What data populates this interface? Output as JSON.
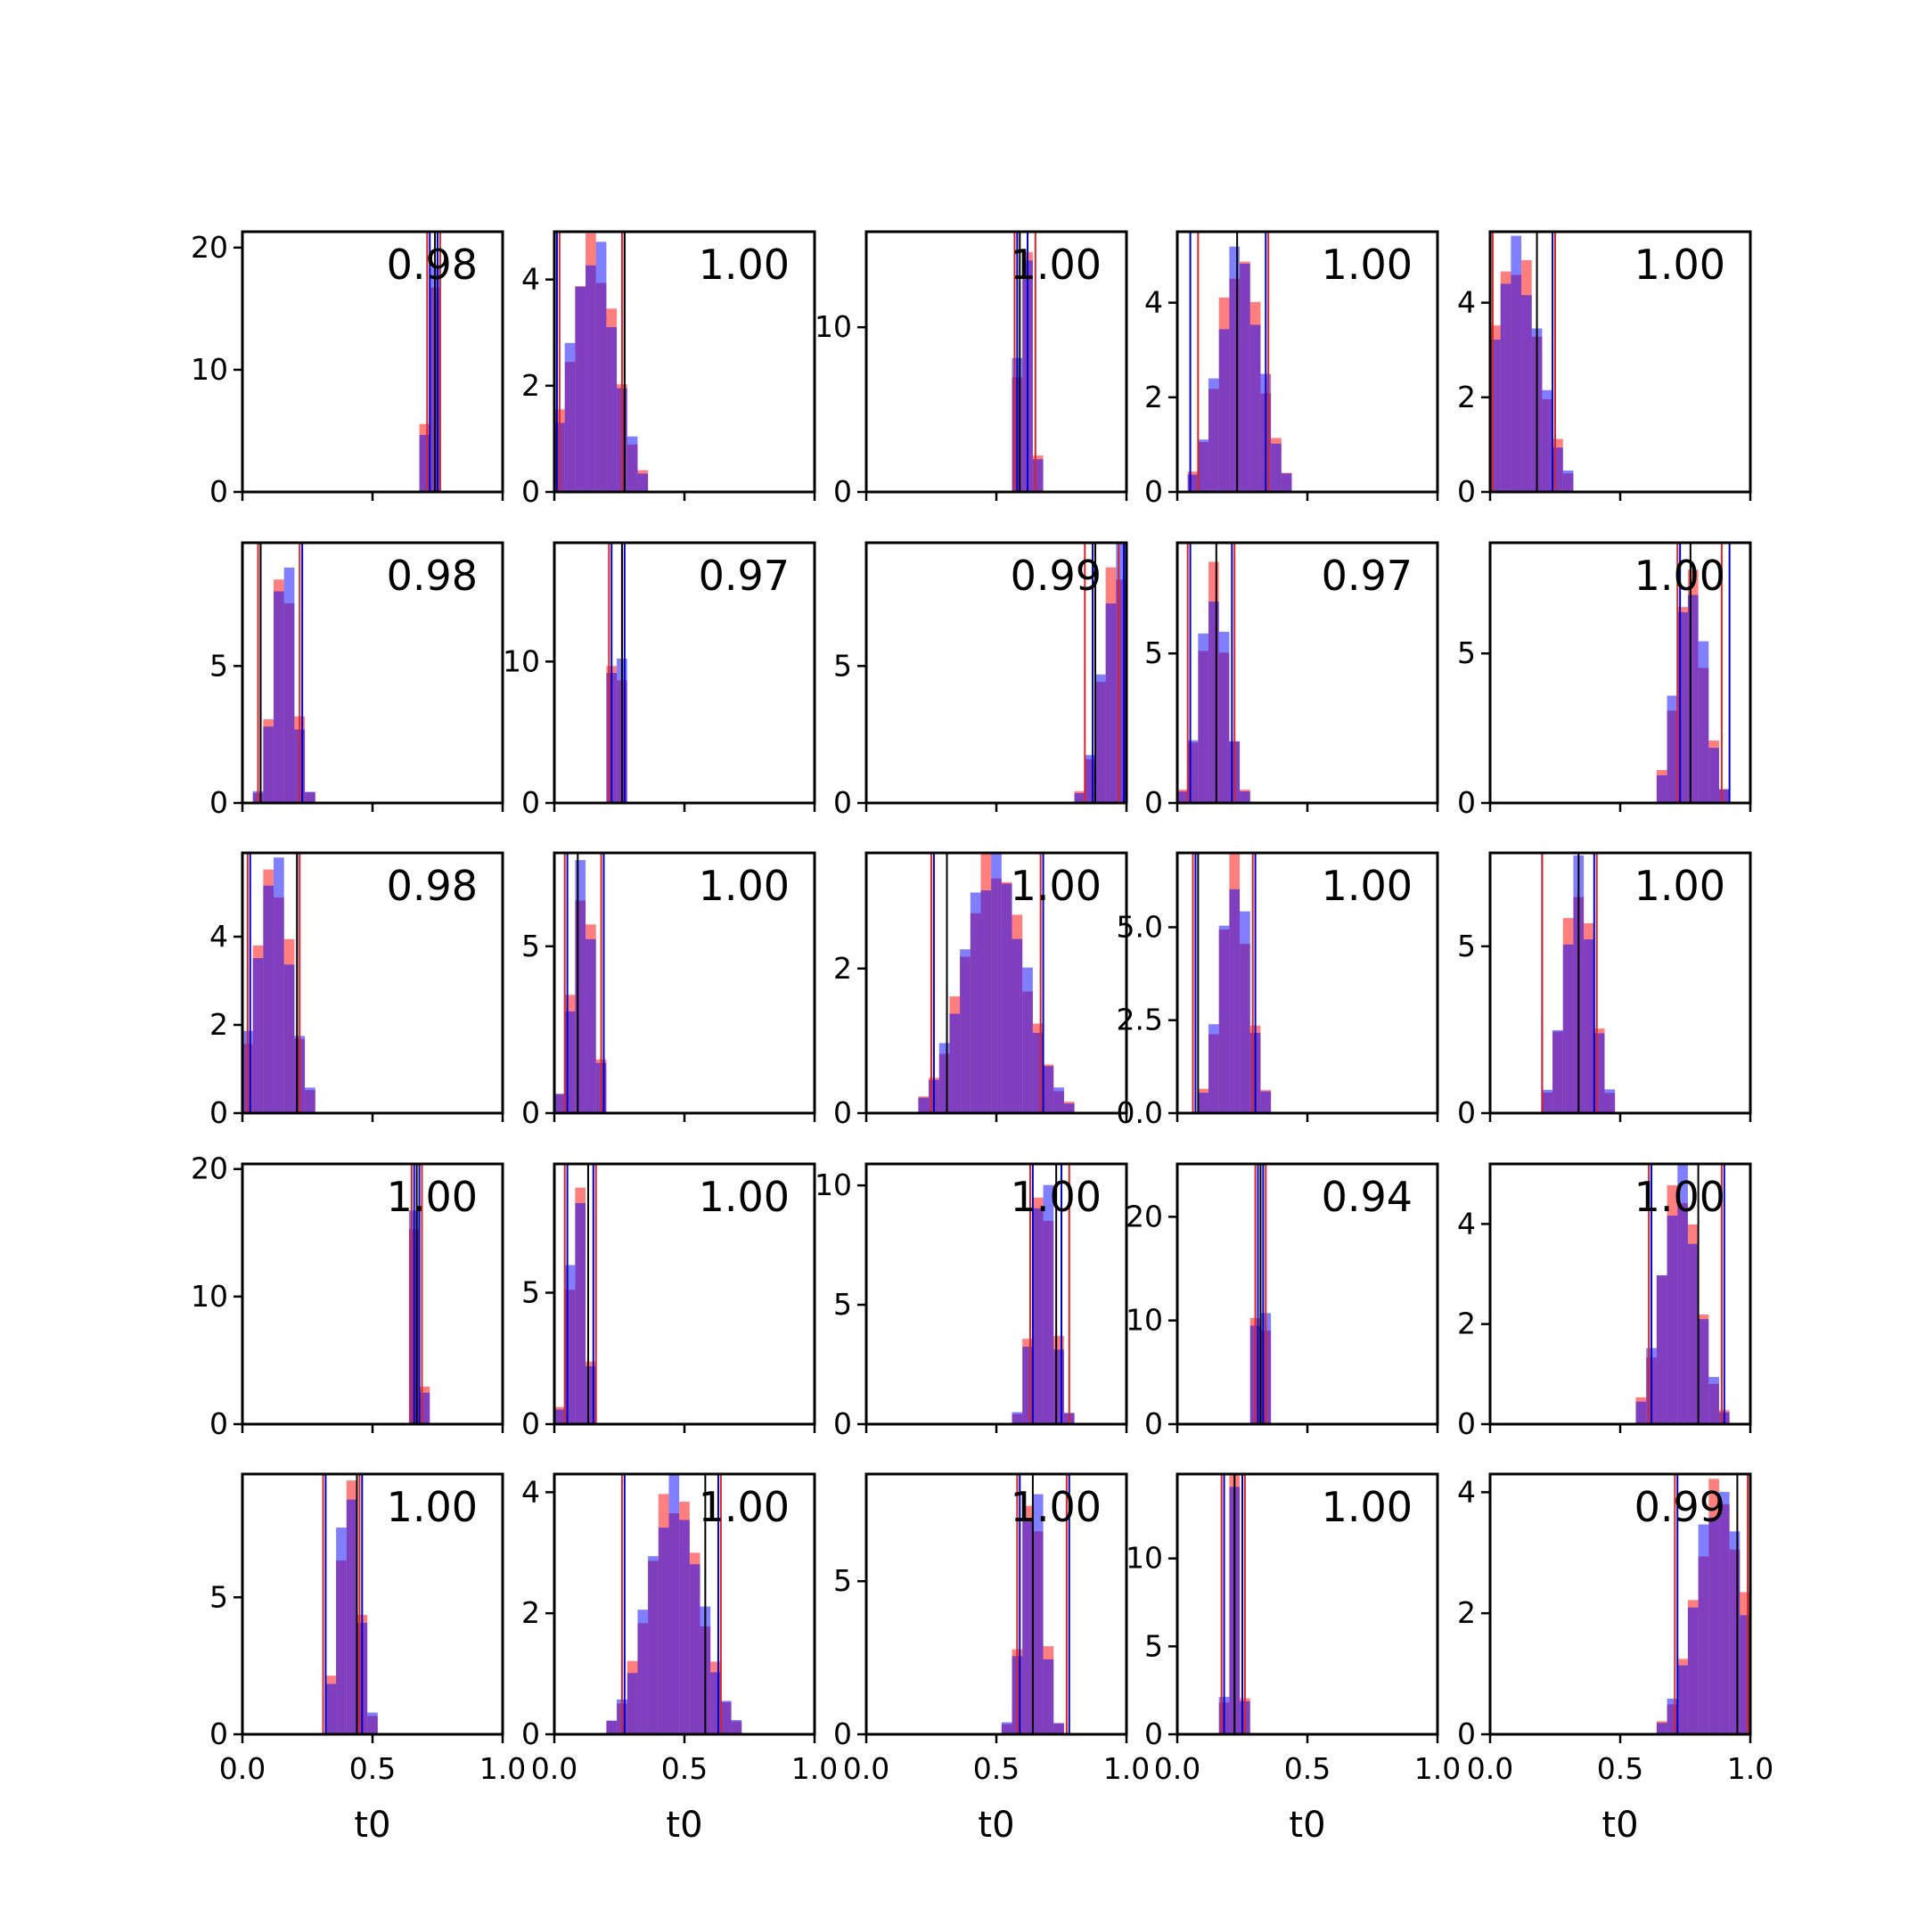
{
  "chart_data": {
    "type": "histogram-grid",
    "rows": 5,
    "cols": 5,
    "xlim": [
      0,
      1
    ],
    "xticks": [
      0.0,
      0.5,
      1.0
    ],
    "xtick_labels": [
      "0.0",
      "0.5",
      "1.0"
    ],
    "xlabel": "t0",
    "colors": {
      "red_hist": "#ff0000",
      "blue_hist": "#0000ff",
      "red_line": "#d62728",
      "blue_line": "#0000cc",
      "black_line": "#000000"
    },
    "panels": [
      {
        "label": "0.98",
        "ylim": [
          0,
          21.3
        ],
        "yticks": [
          0,
          10,
          20
        ],
        "ytick_labels": [
          "0",
          "10",
          "20"
        ],
        "mean": 0.73,
        "sd": 0.018,
        "peak": 20.5,
        "red_lines": [
          0.71,
          0.76
        ],
        "blue_lines": [
          0.72,
          0.75
        ],
        "black_line": 0.74
      },
      {
        "label": "1.00",
        "ylim": [
          0,
          4.9
        ],
        "yticks": [
          0,
          2,
          4
        ],
        "ytick_labels": [
          "0",
          "2",
          "4"
        ],
        "mean": 0.15,
        "sd": 0.085,
        "peak": 4.6,
        "red_lines": [
          0.02,
          0.26
        ],
        "blue_lines": [
          0.01,
          0.27
        ],
        "black_line": 0.27
      },
      {
        "label": "1.00",
        "ylim": [
          0,
          15.8
        ],
        "yticks": [
          0,
          10
        ],
        "ytick_labels": [
          "0",
          "10"
        ],
        "mean": 0.61,
        "sd": 0.025,
        "peak": 15.5,
        "red_lines": [
          0.57,
          0.65
        ],
        "blue_lines": [
          0.58,
          0.62
        ],
        "black_line": 0.59
      },
      {
        "label": "1.00",
        "ylim": [
          0,
          5.5
        ],
        "yticks": [
          0,
          2,
          4
        ],
        "ytick_labels": [
          "0",
          "2",
          "4"
        ],
        "mean": 0.24,
        "sd": 0.08,
        "peak": 5.0,
        "red_lines": [
          0.08,
          0.35
        ],
        "blue_lines": [
          0.05,
          0.34
        ],
        "black_line": 0.23
      },
      {
        "label": "1.00",
        "ylim": [
          0,
          5.5
        ],
        "yticks": [
          0,
          2,
          4
        ],
        "ytick_labels": [
          "0",
          "2",
          "4"
        ],
        "mean": 0.1,
        "sd": 0.09,
        "peak": 5.0,
        "red_lines": [
          0.01,
          0.25
        ],
        "blue_lines": [
          0.0,
          0.24
        ],
        "black_line": 0.18
      },
      {
        "label": "0.98",
        "ylim": [
          0,
          9.5
        ],
        "yticks": [
          0,
          5
        ],
        "ytick_labels": [
          "0",
          "5"
        ],
        "mean": 0.16,
        "sd": 0.04,
        "peak": 9.0,
        "red_lines": [
          0.06,
          0.22
        ],
        "blue_lines": [
          0.07,
          0.23
        ],
        "black_line": 0.07
      },
      {
        "label": "0.97",
        "ylim": [
          0,
          18.4
        ],
        "yticks": [
          0,
          10
        ],
        "ytick_labels": [
          "0",
          "10"
        ],
        "mean": 0.24,
        "sd": 0.018,
        "peak": 17.5,
        "red_lines": [
          0.21,
          0.26
        ],
        "blue_lines": [
          0.22,
          0.27
        ],
        "black_line": 0.26
      },
      {
        "label": "0.99",
        "ylim": [
          0,
          9.5
        ],
        "yticks": [
          0,
          5
        ],
        "ytick_labels": [
          "0",
          "5"
        ],
        "mean": 0.97,
        "sd": 0.06,
        "peak": 9.0,
        "red_lines": [
          0.84,
          0.97
        ],
        "blue_lines": [
          0.87,
          0.99
        ],
        "black_line": 0.88
      },
      {
        "label": "0.97",
        "ylim": [
          0,
          8.7
        ],
        "yticks": [
          0,
          5
        ],
        "ytick_labels": [
          "0",
          "5"
        ],
        "mean": 0.14,
        "sd": 0.05,
        "peak": 7.4,
        "red_lines": [
          0.04,
          0.22
        ],
        "blue_lines": [
          0.05,
          0.21
        ],
        "black_line": 0.15
      },
      {
        "label": "1.00",
        "ylim": [
          0,
          8.7
        ],
        "yticks": [
          0,
          5
        ],
        "ytick_labels": [
          "0",
          "5"
        ],
        "mean": 0.77,
        "sd": 0.055,
        "peak": 7.5,
        "red_lines": [
          0.72,
          0.89
        ],
        "blue_lines": [
          0.73,
          0.92
        ],
        "black_line": 0.77
      },
      {
        "label": "0.98",
        "ylim": [
          0,
          5.9
        ],
        "yticks": [
          0,
          2,
          4
        ],
        "ytick_labels": [
          "0",
          "2",
          "4"
        ],
        "mean": 0.12,
        "sd": 0.065,
        "peak": 5.6,
        "red_lines": [
          0.02,
          0.22
        ],
        "blue_lines": [
          0.03,
          0.21
        ],
        "black_line": 0.21
      },
      {
        "label": "1.00",
        "ylim": [
          0,
          7.8
        ],
        "yticks": [
          0,
          5
        ],
        "ytick_labels": [
          "0",
          "5"
        ],
        "mean": 0.11,
        "sd": 0.04,
        "peak": 7.2,
        "red_lines": [
          0.04,
          0.18
        ],
        "blue_lines": [
          0.05,
          0.19
        ],
        "black_line": 0.09
      },
      {
        "label": "1.00",
        "ylim": [
          0,
          3.6
        ],
        "yticks": [
          0,
          2
        ],
        "ytick_labels": [
          "0",
          "2"
        ],
        "mean": 0.49,
        "sd": 0.115,
        "peak": 3.5,
        "red_lines": [
          0.25,
          0.67
        ],
        "blue_lines": [
          0.26,
          0.68
        ],
        "black_line": 0.31
      },
      {
        "label": "1.00",
        "ylim": [
          0,
          7.0
        ],
        "yticks": [
          0,
          2.5,
          5
        ],
        "ytick_labels": [
          "0.0",
          "2.5",
          "5.0"
        ],
        "mean": 0.22,
        "sd": 0.055,
        "peak": 6.5,
        "red_lines": [
          0.06,
          0.29
        ],
        "blue_lines": [
          0.07,
          0.3
        ],
        "black_line": 0.08
      },
      {
        "label": "1.00",
        "ylim": [
          0,
          7.8
        ],
        "yticks": [
          0,
          5
        ],
        "ytick_labels": [
          "0",
          "5"
        ],
        "mean": 0.34,
        "sd": 0.055,
        "peak": 7.1,
        "red_lines": [
          0.2,
          0.41
        ],
        "blue_lines": [
          0.2,
          0.4
        ],
        "black_line": 0.34
      },
      {
        "label": "1.00",
        "ylim": [
          0,
          20.4
        ],
        "yticks": [
          0,
          10,
          20
        ],
        "ytick_labels": [
          "0",
          "10",
          "20"
        ],
        "mean": 0.67,
        "sd": 0.015,
        "peak": 20.0,
        "red_lines": [
          0.65,
          0.69
        ],
        "blue_lines": [
          0.66,
          0.68
        ],
        "black_line": 0.67
      },
      {
        "label": "1.00",
        "ylim": [
          0,
          9.9
        ],
        "yticks": [
          0,
          5
        ],
        "ytick_labels": [
          "0",
          "5"
        ],
        "mean": 0.09,
        "sd": 0.03,
        "peak": 9.2,
        "red_lines": [
          0.04,
          0.16
        ],
        "blue_lines": [
          0.05,
          0.15
        ],
        "black_line": 0.13
      },
      {
        "label": "1.00",
        "ylim": [
          0,
          10.9
        ],
        "yticks": [
          0,
          5,
          10
        ],
        "ytick_labels": [
          "0",
          "5",
          "10"
        ],
        "mean": 0.68,
        "sd": 0.04,
        "peak": 10.5,
        "red_lines": [
          0.63,
          0.78
        ],
        "blue_lines": [
          0.64,
          0.75
        ],
        "black_line": 0.73
      },
      {
        "label": "0.94",
        "ylim": [
          0,
          25.1
        ],
        "yticks": [
          0,
          10,
          20
        ],
        "ytick_labels": [
          "0",
          "10",
          "20"
        ],
        "mean": 0.32,
        "sd": 0.015,
        "peak": 24.0,
        "red_lines": [
          0.3,
          0.34
        ],
        "blue_lines": [
          0.31,
          0.33
        ],
        "black_line": 0.32
      },
      {
        "label": "1.00",
        "ylim": [
          0,
          5.2
        ],
        "yticks": [
          0,
          2,
          4
        ],
        "ytick_labels": [
          "0",
          "2",
          "4"
        ],
        "mean": 0.73,
        "sd": 0.07,
        "peak": 4.9,
        "red_lines": [
          0.61,
          0.89
        ],
        "blue_lines": [
          0.62,
          0.9
        ],
        "black_line": 0.8
      },
      {
        "label": "1.00",
        "ylim": [
          0,
          9.5
        ],
        "yticks": [
          0,
          5
        ],
        "ytick_labels": [
          "0",
          "5"
        ],
        "mean": 0.41,
        "sd": 0.04,
        "peak": 9.2,
        "red_lines": [
          0.31,
          0.45
        ],
        "blue_lines": [
          0.32,
          0.46
        ],
        "black_line": 0.44
      },
      {
        "label": "1.00",
        "ylim": [
          0,
          4.3
        ],
        "yticks": [
          0,
          2,
          4
        ],
        "ytick_labels": [
          "0",
          "2",
          "4"
        ],
        "mean": 0.46,
        "sd": 0.1,
        "peak": 4.0,
        "red_lines": [
          0.26,
          0.64
        ],
        "blue_lines": [
          0.27,
          0.63
        ],
        "black_line": 0.58
      },
      {
        "label": "1.00",
        "ylim": [
          0,
          8.5
        ],
        "yticks": [
          0,
          5
        ],
        "ytick_labels": [
          "0",
          "5"
        ],
        "mean": 0.64,
        "sd": 0.04,
        "peak": 8.2,
        "red_lines": [
          0.58,
          0.77
        ],
        "blue_lines": [
          0.59,
          0.78
        ],
        "black_line": 0.64
      },
      {
        "label": "1.00",
        "ylim": [
          0,
          14.8
        ],
        "yticks": [
          0,
          5,
          10
        ],
        "ytick_labels": [
          "0",
          "5",
          "10"
        ],
        "mean": 0.22,
        "sd": 0.02,
        "peak": 14.5,
        "red_lines": [
          0.17,
          0.26
        ],
        "blue_lines": [
          0.18,
          0.25
        ],
        "black_line": 0.22
      },
      {
        "label": "0.99",
        "ylim": [
          0,
          4.3
        ],
        "yticks": [
          0,
          2,
          4
        ],
        "ytick_labels": [
          "0",
          "2",
          "4"
        ],
        "mean": 0.88,
        "sd": 0.09,
        "peak": 4.0,
        "red_lines": [
          0.71,
          0.99
        ],
        "blue_lines": [
          0.72,
          1.0
        ],
        "black_line": 0.95
      }
    ]
  }
}
